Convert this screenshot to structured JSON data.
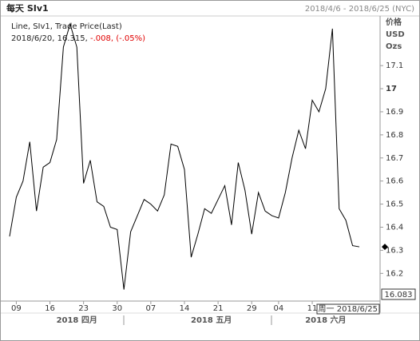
{
  "chart_data": {
    "type": "line",
    "title": "每天 SIv1",
    "date_range": "2018/4/6 - 2018/6/25 (NYC)",
    "info_line1": "Line, SIv1, Trade Price(Last)",
    "info_line2": "2018/6/20, 16.315, ",
    "info_change": "-.008, (-.05%)",
    "y_axis_header": [
      "价格",
      "USD",
      "Ozs"
    ],
    "categories": [
      "2018-04-06",
      "2018-04-09",
      "2018-04-10",
      "2018-04-11",
      "2018-04-12",
      "2018-04-13",
      "2018-04-16",
      "2018-04-17",
      "2018-04-18",
      "2018-04-19",
      "2018-04-20",
      "2018-04-23",
      "2018-04-24",
      "2018-04-25",
      "2018-04-26",
      "2018-04-27",
      "2018-04-30",
      "2018-05-01",
      "2018-05-02",
      "2018-05-03",
      "2018-05-04",
      "2018-05-07",
      "2018-05-08",
      "2018-05-09",
      "2018-05-10",
      "2018-05-11",
      "2018-05-14",
      "2018-05-15",
      "2018-05-16",
      "2018-05-17",
      "2018-05-18",
      "2018-05-21",
      "2018-05-22",
      "2018-05-23",
      "2018-05-24",
      "2018-05-25",
      "2018-05-29",
      "2018-05-30",
      "2018-05-31",
      "2018-06-01",
      "2018-06-04",
      "2018-06-05",
      "2018-06-06",
      "2018-06-07",
      "2018-06-08",
      "2018-06-11",
      "2018-06-12",
      "2018-06-13",
      "2018-06-14",
      "2018-06-15",
      "2018-06-18",
      "2018-06-19",
      "2018-06-20"
    ],
    "series": [
      {
        "name": "SIv1",
        "color": "#000000",
        "values": [
          16.36,
          16.53,
          16.6,
          16.77,
          16.47,
          16.66,
          16.68,
          16.78,
          17.18,
          17.28,
          17.18,
          16.59,
          16.69,
          16.51,
          16.49,
          16.4,
          16.39,
          16.13,
          16.38,
          16.45,
          16.52,
          16.5,
          16.47,
          16.54,
          16.76,
          16.75,
          16.65,
          16.27,
          16.37,
          16.48,
          16.46,
          16.52,
          16.58,
          16.41,
          16.68,
          16.56,
          16.37,
          16.55,
          16.47,
          16.45,
          16.44,
          16.55,
          16.7,
          16.82,
          16.74,
          16.95,
          16.9,
          17.0,
          17.26,
          16.48,
          16.43,
          16.32,
          16.315
        ]
      }
    ],
    "ylim": [
      16.08,
      17.315
    ],
    "yticks": [
      16.2,
      16.3,
      16.4,
      16.5,
      16.6,
      16.7,
      16.8,
      16.9,
      17,
      17.1
    ],
    "xticks": [
      {
        "value": "2018-04-09",
        "label": "09"
      },
      {
        "value": "2018-04-16",
        "label": "16"
      },
      {
        "value": "2018-04-23",
        "label": "23"
      },
      {
        "value": "2018-04-30",
        "label": "30"
      },
      {
        "value": "2018-05-07",
        "label": "07"
      },
      {
        "value": "2018-05-14",
        "label": "14"
      },
      {
        "value": "2018-05-21",
        "label": "21"
      },
      {
        "value": "2018-05-29",
        "label": "29"
      },
      {
        "value": "2018-06-04",
        "label": "04"
      },
      {
        "value": "2018-06-11",
        "label": "11"
      }
    ],
    "months": [
      {
        "value": "2018-04-20",
        "label": "2018 四月"
      },
      {
        "value": "2018-05-18",
        "label": "2018 五月"
      },
      {
        "value": "2018-06-13",
        "label": "2018 六月"
      }
    ],
    "crosshair_date": "周一 2018/6/25",
    "crosshair_value": 16.083
  }
}
